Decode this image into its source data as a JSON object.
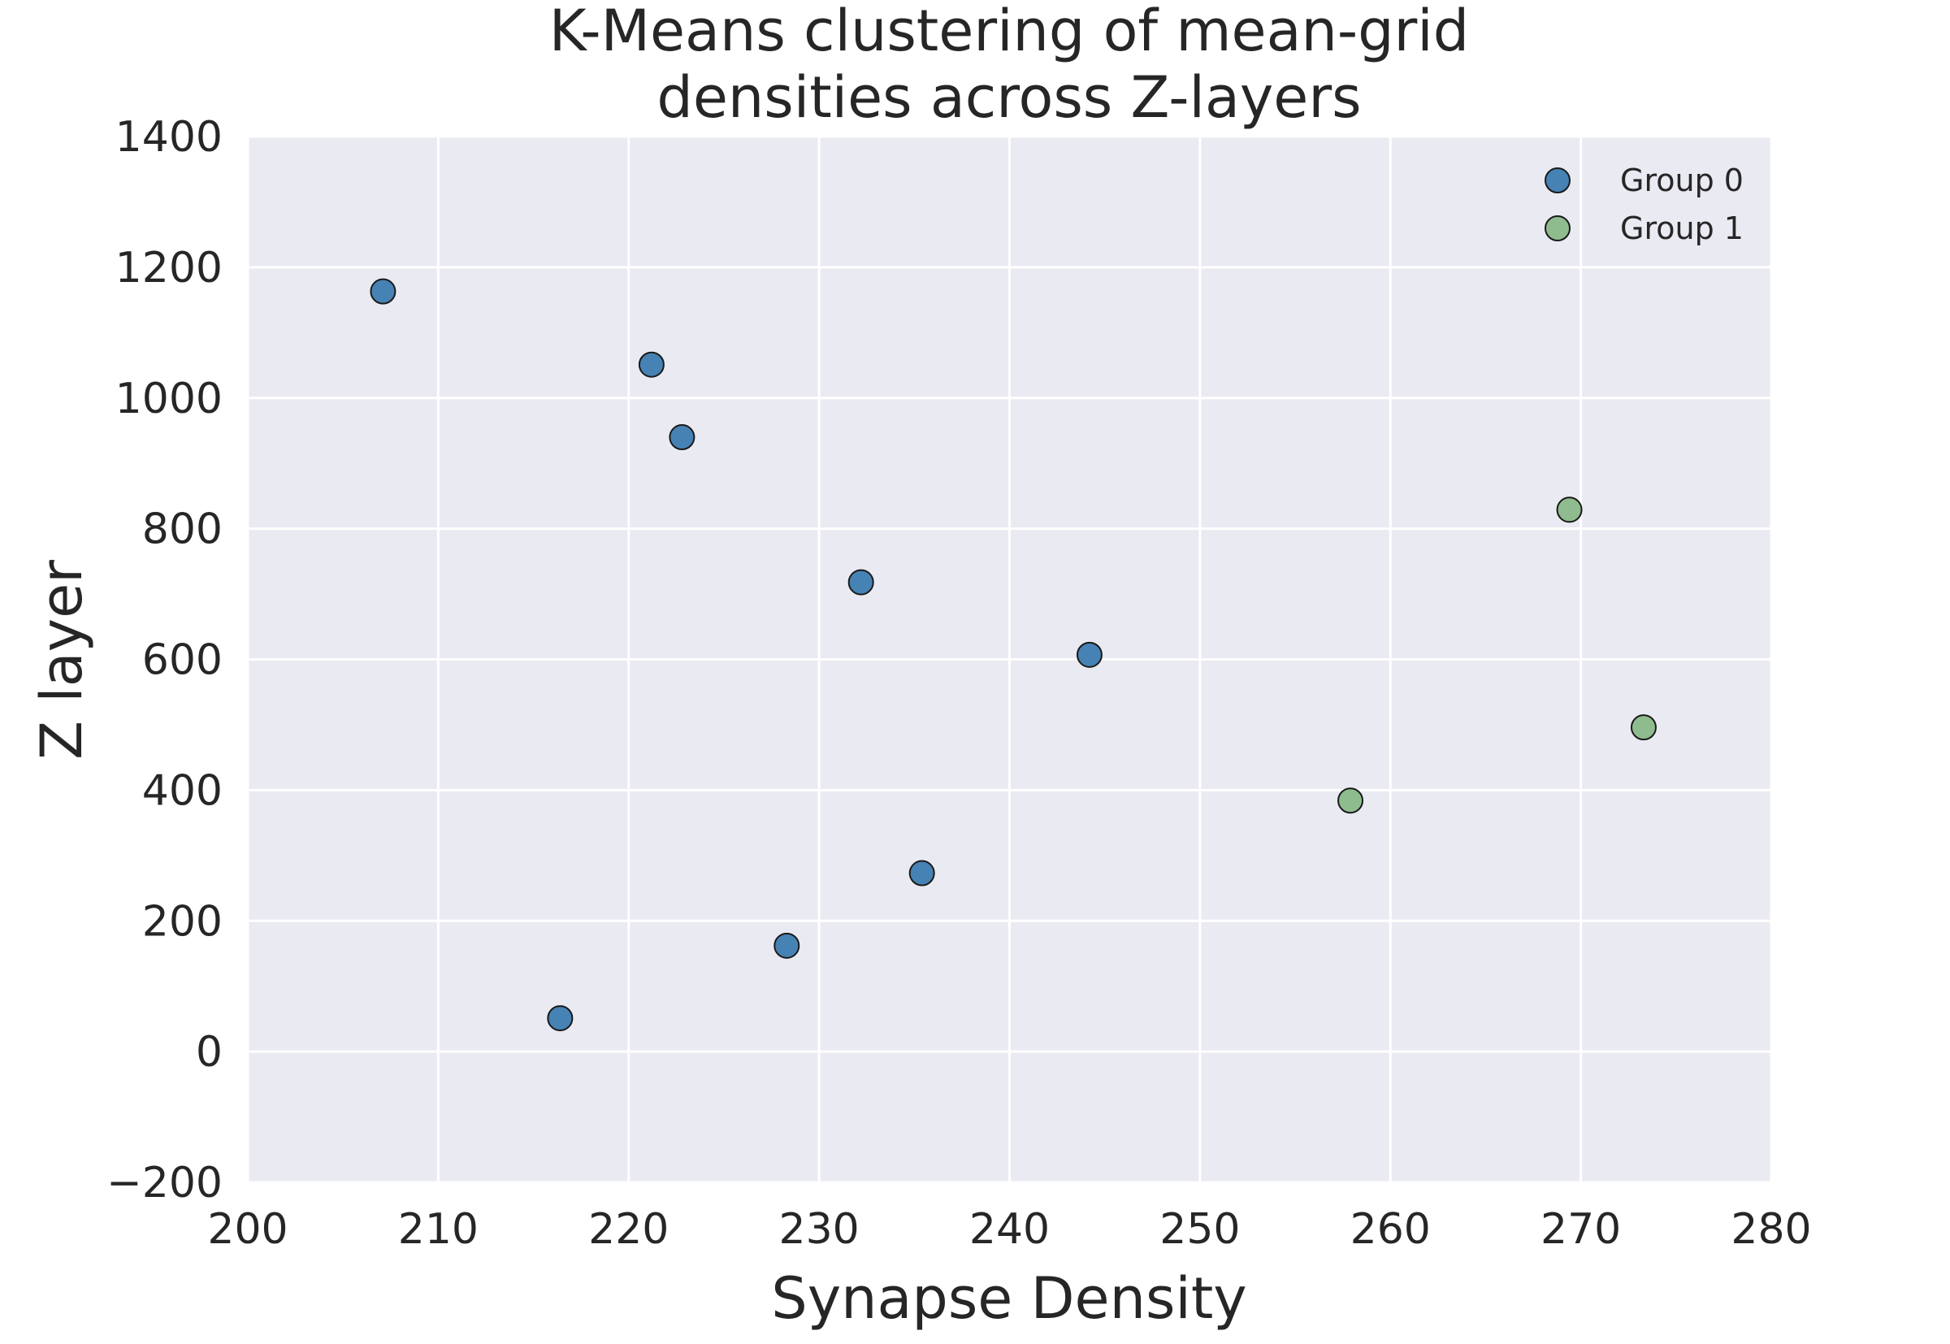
{
  "chart_data": {
    "type": "scatter",
    "title_lines": [
      "K-Means clustering of mean-grid",
      "densities across Z-layers"
    ],
    "xlabel": "Synapse Density",
    "ylabel": "Z layer",
    "xlim": [
      200,
      280
    ],
    "ylim": [
      -200,
      1400
    ],
    "xticks": [
      200,
      210,
      220,
      230,
      240,
      250,
      260,
      270,
      280
    ],
    "yticks": [
      -200,
      0,
      200,
      400,
      600,
      800,
      1000,
      1200,
      1400
    ],
    "xtick_labels": [
      "200",
      "210",
      "220",
      "230",
      "240",
      "250",
      "260",
      "270",
      "280"
    ],
    "ytick_labels": [
      "−200",
      "0",
      "200",
      "400",
      "600",
      "800",
      "1000",
      "1200",
      "1400"
    ],
    "grid": true,
    "background_color": "#eaeaf2",
    "grid_color": "#ffffff",
    "legend_position": "top-right",
    "series": [
      {
        "name": "Group 0",
        "color": "#4682b4",
        "points": [
          {
            "x": 207.1,
            "y": 1163
          },
          {
            "x": 221.2,
            "y": 1051
          },
          {
            "x": 222.8,
            "y": 940
          },
          {
            "x": 232.2,
            "y": 718
          },
          {
            "x": 244.2,
            "y": 607
          },
          {
            "x": 235.4,
            "y": 273
          },
          {
            "x": 228.3,
            "y": 162
          },
          {
            "x": 216.4,
            "y": 51
          }
        ]
      },
      {
        "name": "Group 1",
        "color": "#8fbc8f",
        "points": [
          {
            "x": 269.4,
            "y": 829
          },
          {
            "x": 273.3,
            "y": 496
          },
          {
            "x": 257.9,
            "y": 384
          }
        ]
      }
    ]
  }
}
